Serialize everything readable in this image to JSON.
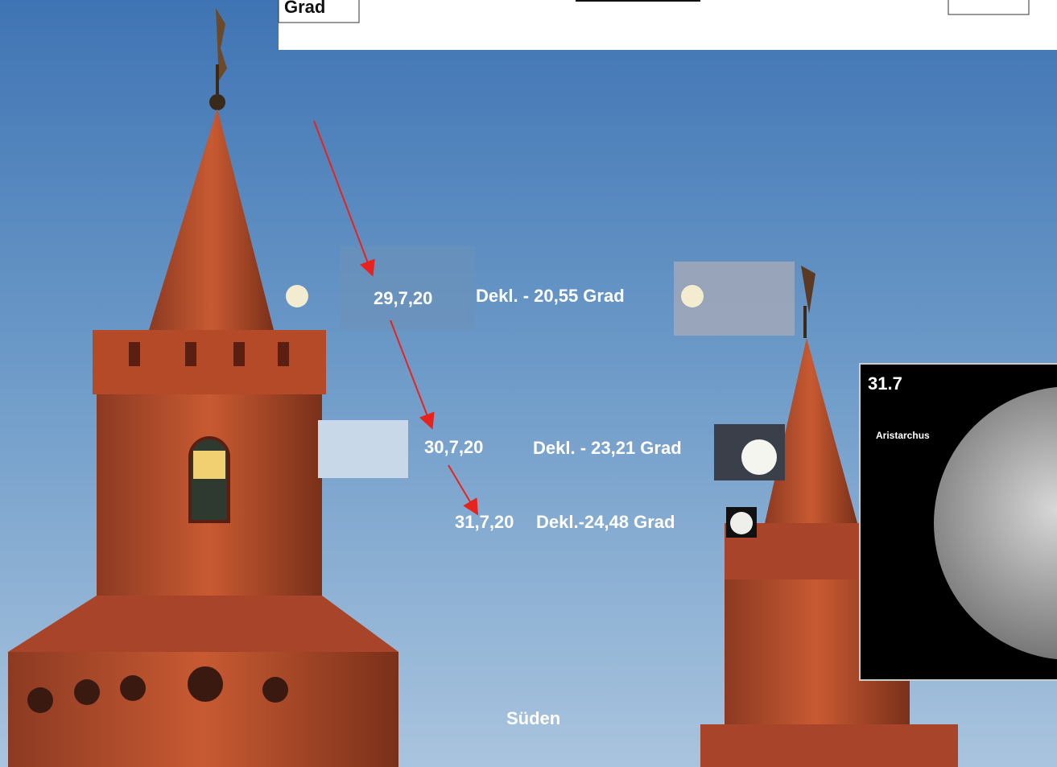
{
  "header": {
    "label": "Grad"
  },
  "annotations": [
    {
      "date": "29,7,20",
      "declination": "Dekl. - 20,55 Grad"
    },
    {
      "date": "30,7,20",
      "declination": "Dekl. - 23,21 Grad"
    },
    {
      "date": "31,7,20",
      "declination": "Dekl.-24,48 Grad"
    }
  ],
  "inset": {
    "title": "31.7",
    "label": "Aristarchus"
  },
  "direction": "Süden"
}
